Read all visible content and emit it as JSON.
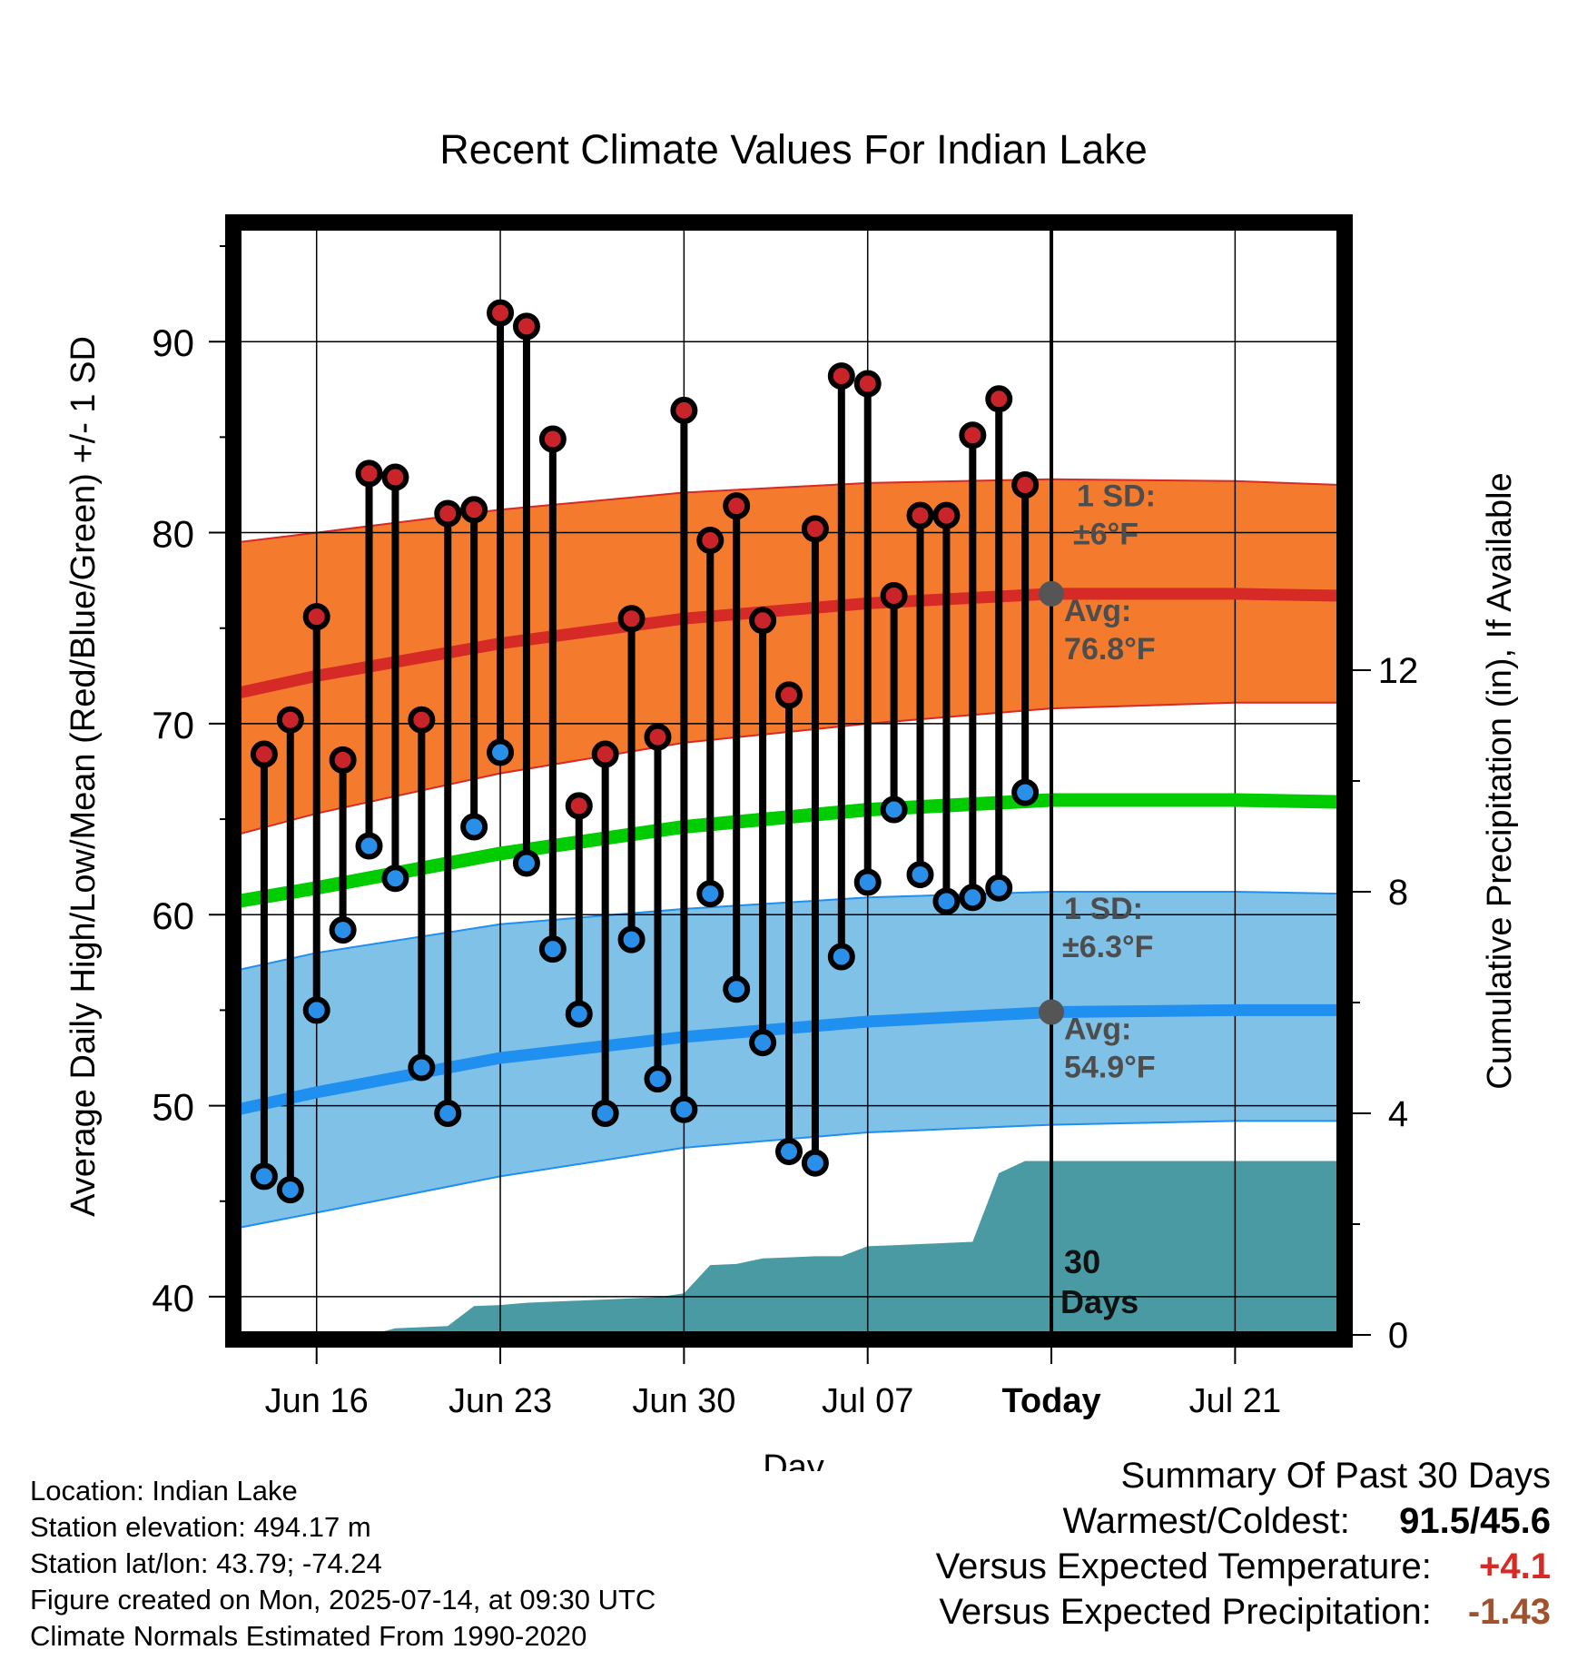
{
  "chart_data": {
    "type": "line",
    "title": "Recent Climate Values For Indian Lake",
    "xlabel": "Day",
    "ylabel": "Average Daily High/Low/Mean (Red/Blue/Green) +/- 1 SD",
    "y2label": "Cumulative Precipitation (in), If Available",
    "ylim": [
      38,
      96
    ],
    "y2lim": [
      0,
      20
    ],
    "yticks": [
      40,
      50,
      60,
      70,
      80,
      90
    ],
    "y2ticks": [
      0,
      4,
      8,
      12
    ],
    "xlim": [
      "2025-06-13",
      "2025-07-25"
    ],
    "xticks": [
      {
        "date": "2025-06-16",
        "label": "Jun 16"
      },
      {
        "date": "2025-06-23",
        "label": "Jun 23"
      },
      {
        "date": "2025-06-30",
        "label": "Jun 30"
      },
      {
        "date": "2025-07-07",
        "label": "Jul 07"
      },
      {
        "date": "2025-07-14",
        "label": "Today"
      },
      {
        "date": "2025-07-21",
        "label": "Jul 21"
      }
    ],
    "grid": true,
    "normals": {
      "dates": [
        "2025-06-13",
        "2025-06-16",
        "2025-06-23",
        "2025-06-30",
        "2025-07-07",
        "2025-07-14",
        "2025-07-21",
        "2025-07-25"
      ],
      "high_avg": [
        71.6,
        72.5,
        74.2,
        75.5,
        76.3,
        76.8,
        76.8,
        76.7
      ],
      "high_upper": [
        79.5,
        80.0,
        81.2,
        82.1,
        82.6,
        82.8,
        82.7,
        82.5
      ],
      "high_lower": [
        64.2,
        65.3,
        67.4,
        69.0,
        70.0,
        70.8,
        71.1,
        71.1
      ],
      "mean": [
        60.7,
        61.4,
        63.2,
        64.6,
        65.5,
        66.0,
        66.0,
        65.9
      ],
      "low_avg": [
        49.8,
        50.7,
        52.5,
        53.6,
        54.4,
        54.9,
        55.0,
        55.0
      ],
      "low_upper": [
        57.1,
        58.0,
        59.5,
        60.3,
        60.9,
        61.2,
        61.2,
        61.1
      ],
      "low_lower": [
        43.6,
        44.4,
        46.3,
        47.8,
        48.6,
        49.0,
        49.2,
        49.2
      ]
    },
    "observed": {
      "dates": [
        "2025-06-14",
        "2025-06-15",
        "2025-06-16",
        "2025-06-17",
        "2025-06-18",
        "2025-06-19",
        "2025-06-20",
        "2025-06-21",
        "2025-06-22",
        "2025-06-23",
        "2025-06-24",
        "2025-06-25",
        "2025-06-26",
        "2025-06-27",
        "2025-06-28",
        "2025-06-29",
        "2025-06-30",
        "2025-07-01",
        "2025-07-02",
        "2025-07-03",
        "2025-07-04",
        "2025-07-05",
        "2025-07-06",
        "2025-07-07",
        "2025-07-08",
        "2025-07-09",
        "2025-07-10",
        "2025-07-11",
        "2025-07-12",
        "2025-07-13"
      ],
      "high": [
        68.4,
        70.2,
        75.6,
        68.1,
        83.1,
        82.9,
        70.2,
        81.0,
        81.2,
        91.5,
        90.8,
        84.9,
        65.7,
        68.4,
        75.5,
        69.3,
        86.4,
        79.6,
        81.4,
        75.4,
        71.5,
        80.2,
        88.2,
        87.8,
        76.7,
        80.9,
        80.9,
        85.1,
        87.0,
        82.5
      ],
      "low": [
        46.3,
        45.6,
        55.0,
        59.2,
        63.6,
        61.9,
        52.0,
        49.6,
        64.6,
        68.5,
        62.7,
        58.2,
        54.8,
        49.6,
        58.7,
        51.4,
        49.8,
        61.1,
        56.1,
        53.3,
        47.6,
        47.0,
        57.8,
        61.7,
        65.5,
        62.1,
        60.7,
        60.9,
        61.4,
        66.4
      ]
    },
    "precipitation": {
      "dates": [
        "2025-06-15",
        "2025-06-16",
        "2025-06-17",
        "2025-06-18",
        "2025-06-19",
        "2025-06-20",
        "2025-06-21",
        "2025-06-22",
        "2025-06-23",
        "2025-06-24",
        "2025-06-25",
        "2025-06-26",
        "2025-06-27",
        "2025-06-28",
        "2025-06-29",
        "2025-06-30",
        "2025-07-01",
        "2025-07-02",
        "2025-07-03",
        "2025-07-04",
        "2025-07-05",
        "2025-07-06",
        "2025-07-07",
        "2025-07-08",
        "2025-07-09",
        "2025-07-10",
        "2025-07-11",
        "2025-07-12",
        "2025-07-13",
        "2025-07-14",
        "2025-07-25"
      ],
      "values": [
        0,
        0,
        0,
        0,
        0.12,
        0.14,
        0.16,
        0.52,
        0.54,
        0.58,
        0.6,
        0.62,
        0.64,
        0.66,
        0.68,
        0.75,
        1.26,
        1.28,
        1.38,
        1.4,
        1.42,
        1.42,
        1.6,
        1.62,
        1.64,
        1.66,
        1.68,
        2.92,
        3.14,
        3.14,
        3.14
      ]
    },
    "annotations": {
      "high_sd_label": "1 SD:",
      "high_sd_value": "±6°F",
      "high_avg_label": "Avg:",
      "high_avg_value": "76.8°F",
      "low_sd_label": "1 SD:",
      "low_sd_value": "±6.3°F",
      "low_avg_label": "Avg:",
      "low_avg_value": "54.9°F",
      "days_label_1": "30",
      "days_label_2": "Days"
    },
    "colors": {
      "high_band": "#f47a2e",
      "high_line": "#d62a26",
      "mean_line": "#00cc00",
      "low_band": "#80c1e7",
      "low_line": "#1f8ff0",
      "precip": "#4a9aa3",
      "high_marker": "#c8242a",
      "low_marker": "#2a8fe8",
      "annotation": "#4d4d4d"
    }
  },
  "info": {
    "location": "Location: Indian Lake",
    "elevation": "Station elevation: 494.17 m",
    "latlon": "Station lat/lon: 43.79; -74.24",
    "created": "Figure created on Mon, 2025-07-14, at 09:30 UTC",
    "normals": "Climate Normals Estimated From 1990-2020"
  },
  "summary": {
    "title": "Summary Of Past 30 Days",
    "warm_cold_label": "Warmest/Coldest:",
    "warm_cold_value": "91.5/45.6",
    "temp_label": "Versus Expected Temperature:",
    "temp_value": "+4.1",
    "precip_label": "Versus Expected Precipitation:",
    "precip_value": "-1.43",
    "temp_color": "#d62a26",
    "precip_color": "#a0522d"
  }
}
